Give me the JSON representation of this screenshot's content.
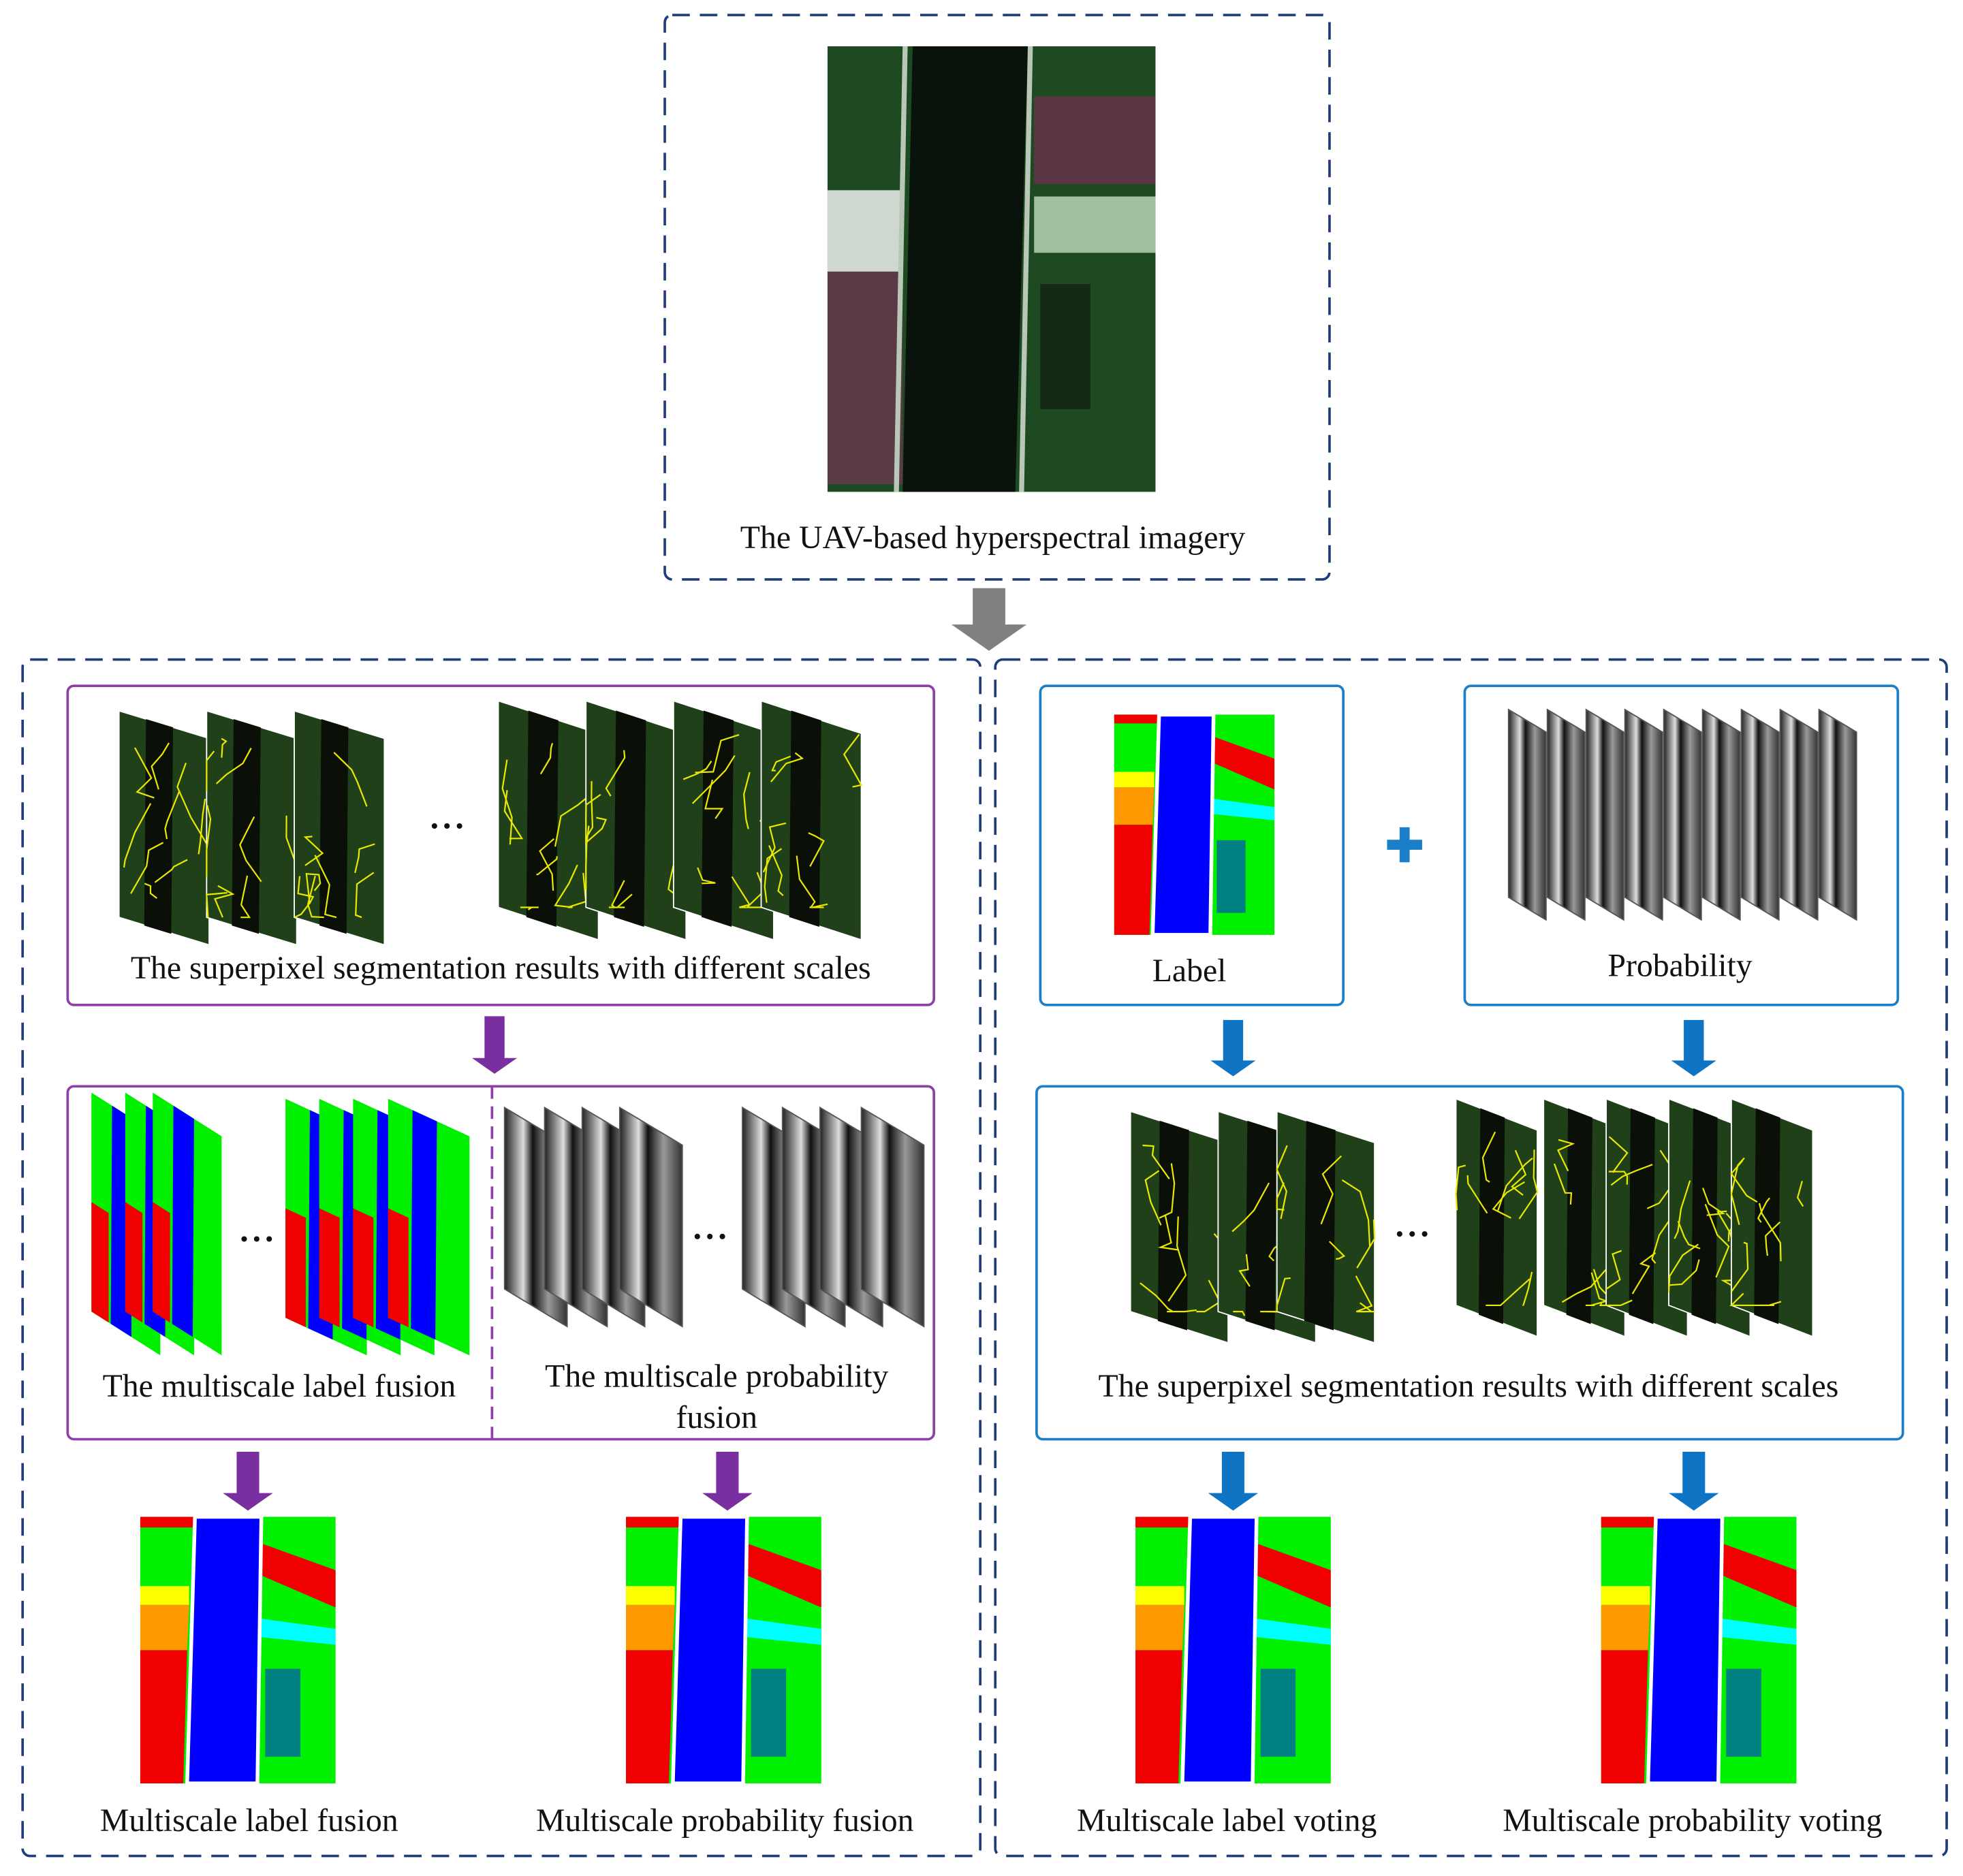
{
  "input": {
    "caption": "The UAV-based hyperspectral imagery"
  },
  "left_branch": {
    "segmentation": {
      "caption": "The superpixel segmentation results with different scales"
    },
    "fusion": {
      "label_caption": "The multiscale label fusion",
      "probability_caption": "The multiscale probability fusion"
    },
    "outputs": [
      {
        "caption": "Multiscale label fusion"
      },
      {
        "caption": "Multiscale probability fusion"
      }
    ]
  },
  "right_branch": {
    "label": {
      "caption": "Label"
    },
    "probability": {
      "caption": "Probability"
    },
    "segmentation": {
      "caption": "The superpixel segmentation results with different scales"
    },
    "outputs": [
      {
        "caption": "Multiscale label voting"
      },
      {
        "caption": "Multiscale probability voting"
      }
    ]
  }
}
